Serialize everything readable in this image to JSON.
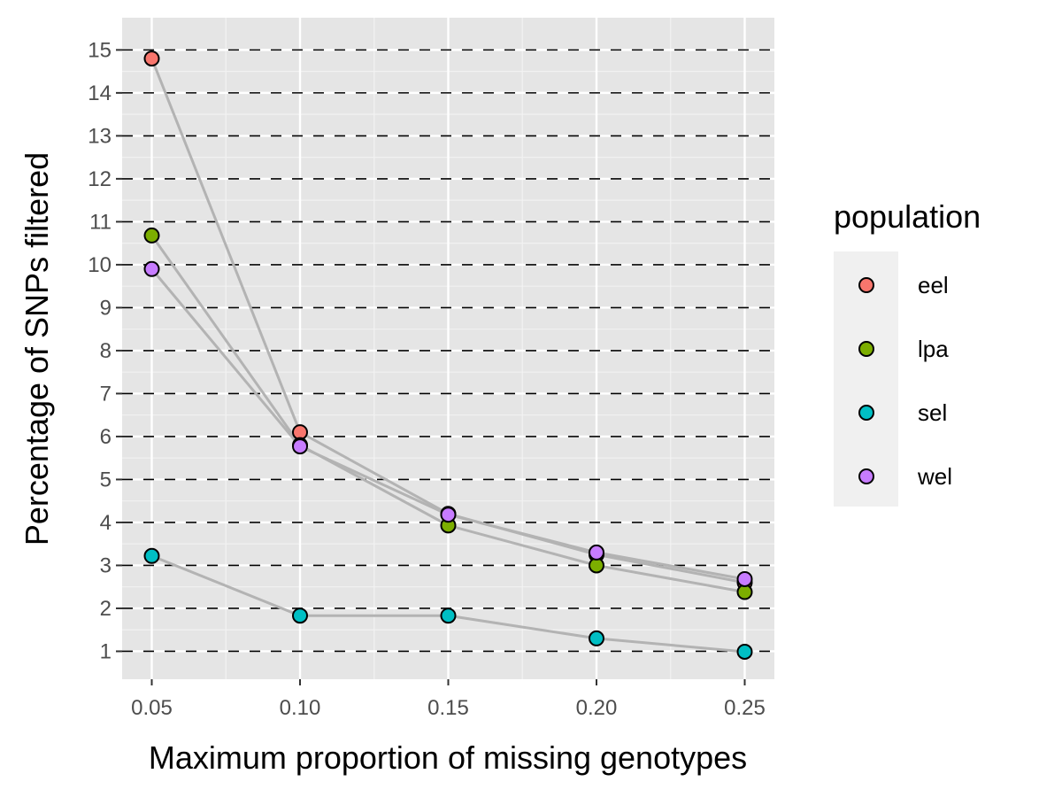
{
  "chart_data": {
    "type": "scatter",
    "xlabel": "Maximum proportion of missing genotypes",
    "ylabel": "Percentage of SNPs filtered",
    "x": [
      0.05,
      0.1,
      0.15,
      0.2,
      0.25
    ],
    "x_ticks": [
      "0.05",
      "0.10",
      "0.15",
      "0.20",
      "0.25"
    ],
    "y_ticks": [
      1,
      2,
      3,
      4,
      5,
      6,
      7,
      8,
      9,
      10,
      11,
      12,
      13,
      14,
      15
    ],
    "xlim": [
      0.04,
      0.26
    ],
    "ylim": [
      0.35,
      15.75
    ],
    "grid": true,
    "dashed_reference_lines": [
      1,
      2,
      3,
      4,
      5,
      6,
      7,
      8,
      9,
      10,
      11,
      12,
      13,
      14,
      15
    ],
    "connecting_lines": true,
    "legend_title": "population",
    "legend_position": "right",
    "series": [
      {
        "name": "eel",
        "color": "#F8766D",
        "values": [
          14.8,
          6.1,
          4.2,
          3.25,
          2.6
        ]
      },
      {
        "name": "lpa",
        "color": "#7CAE00",
        "values": [
          10.68,
          5.8,
          3.93,
          3.0,
          2.38
        ]
      },
      {
        "name": "sel",
        "color": "#00BFC4",
        "values": [
          3.22,
          1.83,
          1.83,
          1.3,
          0.99
        ]
      },
      {
        "name": "wel",
        "color": "#C77CFF",
        "values": [
          9.9,
          5.77,
          4.18,
          3.3,
          2.68
        ]
      }
    ]
  }
}
